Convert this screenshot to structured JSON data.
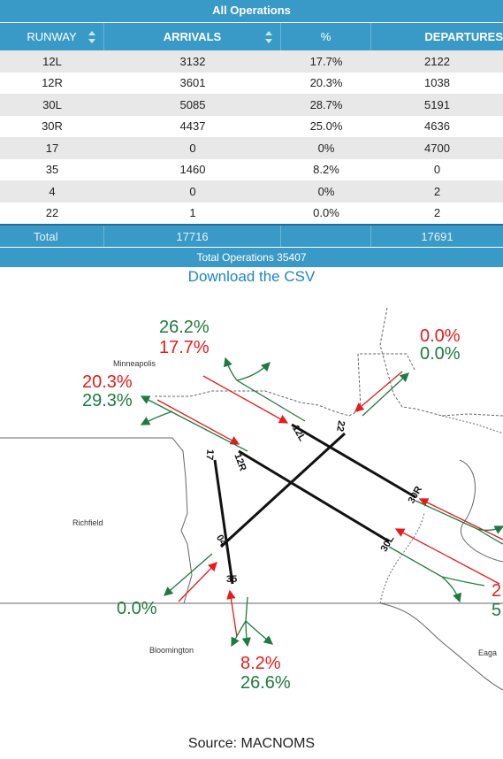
{
  "table": {
    "group_title": "All Operations",
    "headers": {
      "runway": "RUNWAY",
      "arrivals": "ARRIVALS",
      "percent": "%",
      "departures": "DEPARTURES"
    },
    "rows": [
      {
        "runway": "12L",
        "arrivals": "3132",
        "pct": "17.7%",
        "departures": "2122"
      },
      {
        "runway": "12R",
        "arrivals": "3601",
        "pct": "20.3%",
        "departures": "1038"
      },
      {
        "runway": "30L",
        "arrivals": "5085",
        "pct": "28.7%",
        "departures": "5191"
      },
      {
        "runway": "30R",
        "arrivals": "4437",
        "pct": "25.0%",
        "departures": "4636"
      },
      {
        "runway": "17",
        "arrivals": "0",
        "pct": "0%",
        "departures": "4700"
      },
      {
        "runway": "35",
        "arrivals": "1460",
        "pct": "8.2%",
        "departures": "0"
      },
      {
        "runway": "4",
        "arrivals": "0",
        "pct": "0%",
        "departures": "2"
      },
      {
        "runway": "22",
        "arrivals": "1",
        "pct": "0.0%",
        "departures": "2"
      }
    ],
    "total": {
      "label": "Total",
      "arrivals": "17716",
      "departures": "17691"
    },
    "grand_total": "Total Operations 35407"
  },
  "download_link": "Download the CSV",
  "map": {
    "cities": {
      "minneapolis": "Minneapolis",
      "richfield": "Richfield",
      "bloomington": "Bloomington",
      "eagan": "Eaga"
    },
    "runway_labels": {
      "r12l": "12L",
      "r12r": "12R",
      "r30l": "30L",
      "r30r": "30R",
      "r17": "17",
      "r35": "35",
      "r04": "04",
      "r22": "22"
    },
    "percentages": {
      "nw_top_green": "26.2%",
      "nw_top_red": "17.7%",
      "nw_left_red": "20.3%",
      "nw_left_green": "29.3%",
      "ne_red": "0.0%",
      "ne_green": "0.0%",
      "sw_green": "0.0%",
      "s_red": "8.2%",
      "s_green": "26.6%",
      "se_red": "2",
      "se_green": "5"
    },
    "colors": {
      "arrival": "#e81b1b",
      "departure": "#1f7a3f",
      "runway": "#111111"
    }
  },
  "source": "Source: MACNOMS"
}
